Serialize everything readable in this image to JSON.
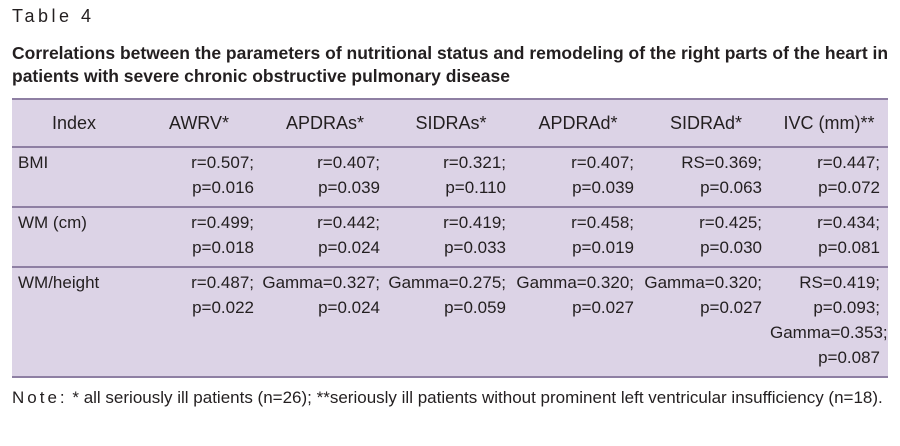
{
  "table_label": "Table 4",
  "caption": "Correlations between the parameters of nutritional status and remodeling of the right parts of the heart in patients with severe chronic obstructive pulmonary disease",
  "headers": [
    "Index",
    "AWRV*",
    "APDRAs*",
    "SIDRAs*",
    "APDRAd*",
    "SIDRAd*",
    "IVC (mm)**"
  ],
  "rows": [
    {
      "index": "BMI",
      "cells": [
        [
          "r=0.507;",
          "p=0.016"
        ],
        [
          "r=0.407;",
          "p=0.039"
        ],
        [
          "r=0.321;",
          "p=0.110"
        ],
        [
          "r=0.407;",
          "p=0.039"
        ],
        [
          "RS=0.369;",
          "p=0.063"
        ],
        [
          "r=0.447;",
          "p=0.072"
        ]
      ]
    },
    {
      "index": "WM (cm)",
      "cells": [
        [
          "r=0.499;",
          "p=0.018"
        ],
        [
          "r=0.442;",
          "p=0.024"
        ],
        [
          "r=0.419;",
          "p=0.033"
        ],
        [
          "r=0.458;",
          "p=0.019"
        ],
        [
          "r=0.425;",
          "p=0.030"
        ],
        [
          "r=0.434;",
          "p=0.081"
        ]
      ]
    },
    {
      "index": "WM/height",
      "cells": [
        [
          "r=0.487;",
          "p=0.022"
        ],
        [
          "Gamma=0.327;",
          "p=0.024"
        ],
        [
          "Gamma=0.275;",
          "p=0.059"
        ],
        [
          "Gamma=0.320;",
          "p=0.027"
        ],
        [
          "Gamma=0.320;",
          "p=0.027"
        ],
        [
          "RS=0.419;",
          "p=0.093;",
          "Gamma=0.353;",
          "p=0.087"
        ]
      ]
    }
  ],
  "note": {
    "label": "Note:",
    "text": " * all seriously ill patients (n=26); **seriously ill patients without prominent left ventricular insufficiency (n=18)."
  },
  "colors": {
    "table_bg": "#dcd3e6",
    "rule": "#8e7fa3",
    "text": "#231f20"
  }
}
